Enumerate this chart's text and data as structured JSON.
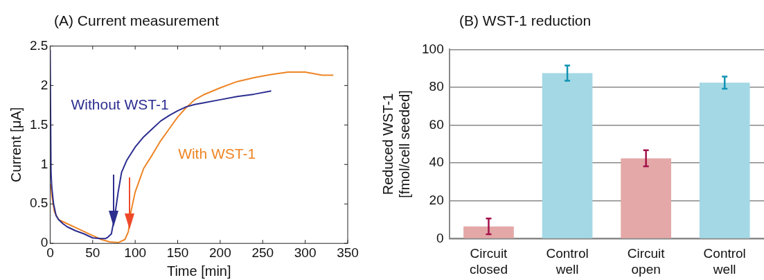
{
  "chart_data": [
    {
      "type": "line",
      "title": "(A) Current measurement",
      "xlabel": "Time [min]",
      "ylabel": "Current [μA]",
      "xlim": [
        0,
        350
      ],
      "xticks": [
        0,
        50,
        100,
        150,
        200,
        250,
        300,
        350
      ],
      "ylim": [
        0,
        2.5
      ],
      "yticks": [
        0,
        0.5,
        1,
        1.5,
        2,
        2.5
      ],
      "grid": false,
      "legend": false,
      "marker": "none",
      "line_style": "solid",
      "series": [
        {
          "name": "Without WST-1",
          "color": "#2b2d8f",
          "x": [
            0,
            1,
            2,
            4,
            7,
            10,
            15,
            20,
            30,
            40,
            50,
            60,
            65,
            68,
            72,
            76,
            80,
            84,
            90,
            100,
            110,
            120,
            130,
            140,
            150,
            160,
            170,
            180,
            200,
            220,
            240,
            260
          ],
          "values": [
            2.45,
            0.9,
            0.7,
            0.5,
            0.35,
            0.3,
            0.25,
            0.21,
            0.16,
            0.12,
            0.07,
            0.06,
            0.06,
            0.08,
            0.12,
            0.35,
            0.65,
            0.9,
            1.05,
            1.22,
            1.35,
            1.45,
            1.55,
            1.62,
            1.68,
            1.73,
            1.76,
            1.78,
            1.82,
            1.86,
            1.89,
            1.93
          ]
        },
        {
          "name": "With WST-1",
          "color": "#ee8424",
          "x": [
            1,
            2,
            5,
            10,
            20,
            30,
            40,
            50,
            60,
            70,
            80,
            88,
            92,
            95,
            100,
            105,
            110,
            120,
            130,
            140,
            150,
            160,
            170,
            180,
            200,
            220,
            240,
            260,
            280,
            300,
            320,
            333
          ],
          "values": [
            0.75,
            0.6,
            0.4,
            0.3,
            0.25,
            0.2,
            0.15,
            0.1,
            0.05,
            0.02,
            0.01,
            0.05,
            0.15,
            0.4,
            0.65,
            0.8,
            0.95,
            1.12,
            1.3,
            1.45,
            1.6,
            1.72,
            1.82,
            1.88,
            1.97,
            2.05,
            2.1,
            2.14,
            2.17,
            2.17,
            2.13,
            2.13
          ]
        }
      ]
    },
    {
      "type": "bar",
      "title": "(B) WST-1 reduction",
      "ylabel": "Reduced WST-1 [fmol/cell seeded]",
      "categories": [
        "Circuit closed",
        "Control well",
        "Circuit open",
        "Control well"
      ],
      "values": [
        6.5,
        87.5,
        42.5,
        82.5
      ],
      "errors": [
        4.2,
        4,
        4.3,
        3.2
      ],
      "colors": [
        "#e3a8a7",
        "#a4d8e5",
        "#e3a8a7",
        "#a4d8e5"
      ],
      "ylim": [
        0,
        100
      ],
      "yticks": [
        0,
        20,
        40,
        60,
        80,
        100
      ],
      "grid": "y",
      "legend": false
    }
  ]
}
